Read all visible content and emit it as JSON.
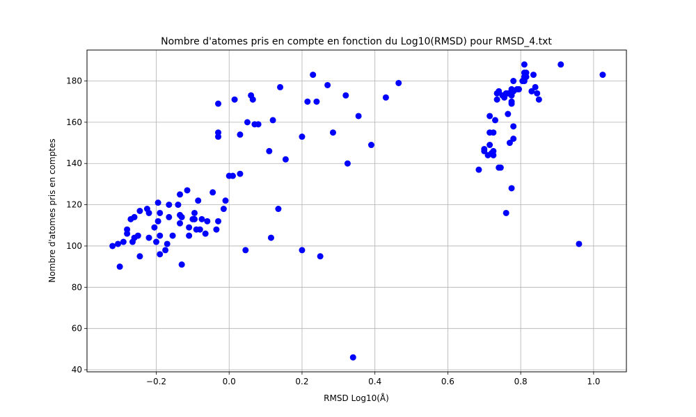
{
  "chart_data": {
    "type": "scatter",
    "title": "Nombre d'atomes pris en compte en fonction du Log10(RMSD) pour RMSD_4.txt",
    "xlabel": "RMSD Log10(Å)",
    "ylabel": "Nombre d'atomes pris en comptes",
    "xlim": [
      -0.39,
      1.09
    ],
    "ylim": [
      39,
      195
    ],
    "x_ticks": [
      -0.2,
      0.0,
      0.2,
      0.4,
      0.6,
      0.8,
      1.0
    ],
    "x_tick_labels": [
      "−0.2",
      "0.0",
      "0.2",
      "0.4",
      "0.6",
      "0.8",
      "1.0"
    ],
    "y_ticks": [
      40,
      60,
      80,
      100,
      120,
      140,
      160,
      180
    ],
    "y_tick_labels": [
      "40",
      "60",
      "80",
      "100",
      "120",
      "140",
      "160",
      "180"
    ],
    "grid": true,
    "marker_color": "#0000ff",
    "points": [
      [
        -0.32,
        100
      ],
      [
        -0.305,
        101
      ],
      [
        -0.29,
        102
      ],
      [
        -0.3,
        90
      ],
      [
        -0.28,
        108
      ],
      [
        -0.28,
        106
      ],
      [
        -0.27,
        113
      ],
      [
        -0.26,
        114
      ],
      [
        -0.265,
        102
      ],
      [
        -0.26,
        104
      ],
      [
        -0.25,
        105
      ],
      [
        -0.245,
        95
      ],
      [
        -0.245,
        117
      ],
      [
        -0.225,
        118
      ],
      [
        -0.22,
        116
      ],
      [
        -0.22,
        104
      ],
      [
        -0.205,
        109
      ],
      [
        -0.2,
        102
      ],
      [
        -0.195,
        121
      ],
      [
        -0.195,
        112
      ],
      [
        -0.19,
        116
      ],
      [
        -0.19,
        105
      ],
      [
        -0.19,
        96
      ],
      [
        -0.175,
        98
      ],
      [
        -0.17,
        101
      ],
      [
        -0.165,
        120
      ],
      [
        -0.165,
        114
      ],
      [
        -0.155,
        105
      ],
      [
        -0.14,
        120
      ],
      [
        -0.135,
        125
      ],
      [
        -0.135,
        115
      ],
      [
        -0.135,
        111
      ],
      [
        -0.13,
        91
      ],
      [
        -0.13,
        114
      ],
      [
        -0.115,
        127
      ],
      [
        -0.11,
        109
      ],
      [
        -0.11,
        105
      ],
      [
        -0.1,
        113
      ],
      [
        -0.095,
        116
      ],
      [
        -0.095,
        113
      ],
      [
        -0.09,
        108
      ],
      [
        -0.085,
        122
      ],
      [
        -0.08,
        108
      ],
      [
        -0.075,
        113
      ],
      [
        -0.065,
        106
      ],
      [
        -0.06,
        112
      ],
      [
        -0.045,
        126
      ],
      [
        -0.035,
        108
      ],
      [
        -0.03,
        112
      ],
      [
        -0.015,
        118
      ],
      [
        -0.01,
        122
      ],
      [
        -0.03,
        169
      ],
      [
        -0.03,
        155
      ],
      [
        -0.03,
        153
      ],
      [
        0.0,
        134
      ],
      [
        0.01,
        134
      ],
      [
        0.015,
        171
      ],
      [
        0.03,
        154
      ],
      [
        0.03,
        135
      ],
      [
        0.045,
        98
      ],
      [
        0.05,
        160
      ],
      [
        0.06,
        173
      ],
      [
        0.065,
        171
      ],
      [
        0.07,
        159
      ],
      [
        0.08,
        159
      ],
      [
        0.11,
        146
      ],
      [
        0.115,
        104
      ],
      [
        0.12,
        161
      ],
      [
        0.135,
        118
      ],
      [
        0.14,
        177
      ],
      [
        0.155,
        142
      ],
      [
        0.2,
        153
      ],
      [
        0.2,
        98
      ],
      [
        0.215,
        170
      ],
      [
        0.23,
        183
      ],
      [
        0.24,
        170
      ],
      [
        0.25,
        95
      ],
      [
        0.27,
        178
      ],
      [
        0.285,
        155
      ],
      [
        0.32,
        173
      ],
      [
        0.325,
        140
      ],
      [
        0.34,
        46
      ],
      [
        0.355,
        163
      ],
      [
        0.39,
        149
      ],
      [
        0.43,
        172
      ],
      [
        0.465,
        179
      ],
      [
        0.685,
        137
      ],
      [
        0.7,
        147
      ],
      [
        0.7,
        146
      ],
      [
        0.71,
        144
      ],
      [
        0.715,
        163
      ],
      [
        0.715,
        149
      ],
      [
        0.715,
        155
      ],
      [
        0.72,
        145
      ],
      [
        0.725,
        146
      ],
      [
        0.725,
        144
      ],
      [
        0.725,
        155
      ],
      [
        0.73,
        161
      ],
      [
        0.735,
        171
      ],
      [
        0.735,
        174
      ],
      [
        0.74,
        175
      ],
      [
        0.74,
        138
      ],
      [
        0.745,
        138
      ],
      [
        0.75,
        173
      ],
      [
        0.755,
        172
      ],
      [
        0.76,
        116
      ],
      [
        0.76,
        174
      ],
      [
        0.765,
        164
      ],
      [
        0.765,
        174
      ],
      [
        0.77,
        150
      ],
      [
        0.775,
        128
      ],
      [
        0.775,
        176
      ],
      [
        0.775,
        173
      ],
      [
        0.775,
        170
      ],
      [
        0.775,
        169
      ],
      [
        0.78,
        180
      ],
      [
        0.78,
        175
      ],
      [
        0.78,
        158
      ],
      [
        0.78,
        152
      ],
      [
        0.79,
        176
      ],
      [
        0.795,
        176
      ],
      [
        0.805,
        180
      ],
      [
        0.81,
        188
      ],
      [
        0.81,
        184
      ],
      [
        0.81,
        182
      ],
      [
        0.81,
        180
      ],
      [
        0.815,
        184
      ],
      [
        0.815,
        182
      ],
      [
        0.83,
        175
      ],
      [
        0.835,
        183
      ],
      [
        0.84,
        177
      ],
      [
        0.845,
        174
      ],
      [
        0.85,
        171
      ],
      [
        0.91,
        188
      ],
      [
        0.96,
        101
      ],
      [
        1.025,
        183
      ]
    ]
  }
}
